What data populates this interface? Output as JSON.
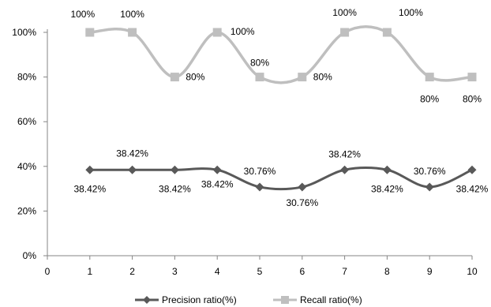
{
  "chart_data": {
    "type": "line",
    "title": "",
    "xlabel": "",
    "ylabel": "",
    "x": [
      1,
      2,
      3,
      4,
      5,
      6,
      7,
      8,
      9,
      10
    ],
    "xlim": [
      0,
      10
    ],
    "ylim": [
      0,
      100
    ],
    "x_ticks": [
      "0",
      "1",
      "2",
      "3",
      "4",
      "5",
      "6",
      "7",
      "8",
      "9",
      "10"
    ],
    "y_ticks": [
      "0%",
      "20%",
      "40%",
      "60%",
      "80%",
      "100%"
    ],
    "grid": false,
    "smoothed": true,
    "legend_position": "bottom",
    "series": [
      {
        "name": "Precision ratio(%)",
        "color": "#595959",
        "marker": "diamond",
        "values": [
          38.42,
          38.42,
          38.42,
          38.42,
          30.76,
          30.76,
          38.42,
          38.42,
          30.76,
          38.42
        ],
        "labels": [
          "38.42%",
          "38.42%",
          "38.42%",
          "38.42%",
          "30.76%",
          "30.76%",
          "38.42%",
          "38.42%",
          "30.76%",
          "38.42%"
        ]
      },
      {
        "name": "Recall ratio(%)",
        "color": "#bfbfbf",
        "marker": "square",
        "values": [
          100,
          100,
          80,
          100,
          80,
          80,
          100,
          100,
          80,
          80
        ],
        "labels": [
          "100%",
          "100%",
          "80%",
          "100%",
          "80%",
          "80%",
          "100%",
          "100%",
          "80%",
          "80%"
        ]
      }
    ]
  }
}
